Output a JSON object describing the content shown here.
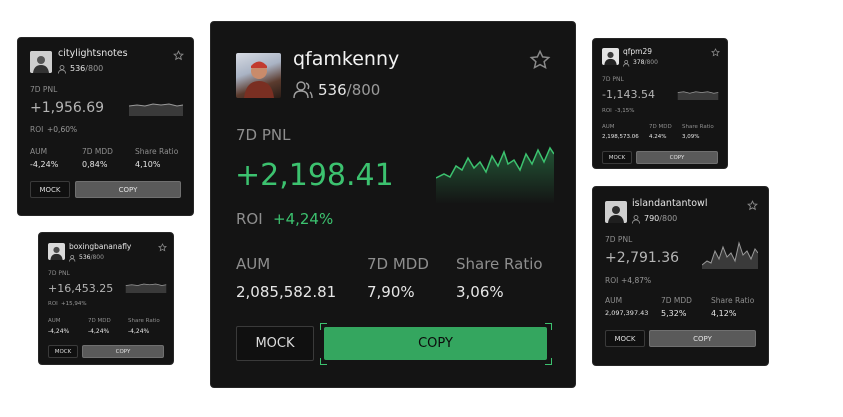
{
  "colors": {
    "accent_green": "#34a65f",
    "card_bg": "#141414",
    "copy_gray": "#5a5a5a"
  },
  "cards": {
    "main": {
      "username": "qfamkenny",
      "followers": "536",
      "capacity": "/800",
      "pnl_label": "7D PNL",
      "pnl_value": "+2,198.41",
      "roi_label": "ROI",
      "roi_value": "+4,24%",
      "aum_label": "AUM",
      "aum_value": "2,085,582.81",
      "mdd_label": "7D MDD",
      "mdd_value": "7,90%",
      "share_label": "Share Ratio",
      "share_value": "3,06%",
      "mock_label": "MOCK",
      "copy_label": "COPY"
    },
    "c1": {
      "username": "citylightsnotes",
      "followers": "536",
      "capacity": "/800",
      "pnl_label": "7D PNL",
      "pnl_value": "+1,956.69",
      "roi_label": "ROI",
      "roi_value": "+0,60%",
      "aum_label": "AUM",
      "aum_value": "-4,24%",
      "mdd_label": "7D MDD",
      "mdd_value": "0,84%",
      "share_label": "Share Ratio",
      "share_value": "4,10%",
      "mock_label": "MOCK",
      "copy_label": "COPY"
    },
    "c2": {
      "username": "boxingbananafly",
      "followers": "536",
      "capacity": "/800",
      "pnl_label": "7D PNL",
      "pnl_value": "+16,453.25",
      "roi_label": "ROI",
      "roi_value": "+15,94%",
      "aum_label": "AUM",
      "aum_value": "-4,24%",
      "mdd_label": "7D MDD",
      "mdd_value": "-4,24%",
      "share_label": "Share Ratio",
      "share_value": "-4,24%",
      "mock_label": "MOCK",
      "copy_label": "COPY"
    },
    "c3": {
      "username": "qfpm29",
      "followers": "378",
      "capacity": "/800",
      "pnl_label": "7D PNL",
      "pnl_value": "-1,143.54",
      "roi_label": "ROI",
      "roi_value": "-3,15%",
      "aum_label": "AUM",
      "aum_value": "2,198,573.06",
      "mdd_label": "7D MDD",
      "mdd_value": "4.24%",
      "share_label": "Share Ratio",
      "share_value": "3,09%",
      "mock_label": "MOCK",
      "copy_label": "COPY"
    },
    "c4": {
      "username": "islandantantowl",
      "followers": "790",
      "capacity": "/800",
      "pnl_label": "7D PNL",
      "pnl_value": "+2,791.36",
      "roi_label": "ROI",
      "roi_value": "+4,87%",
      "aum_label": "AUM",
      "aum_value": "2,097,397.43",
      "mdd_label": "7D MDD",
      "mdd_value": "5,32%",
      "share_label": "Share Ratio",
      "share_value": "4,12%",
      "mock_label": "MOCK",
      "copy_label": "COPY"
    }
  }
}
